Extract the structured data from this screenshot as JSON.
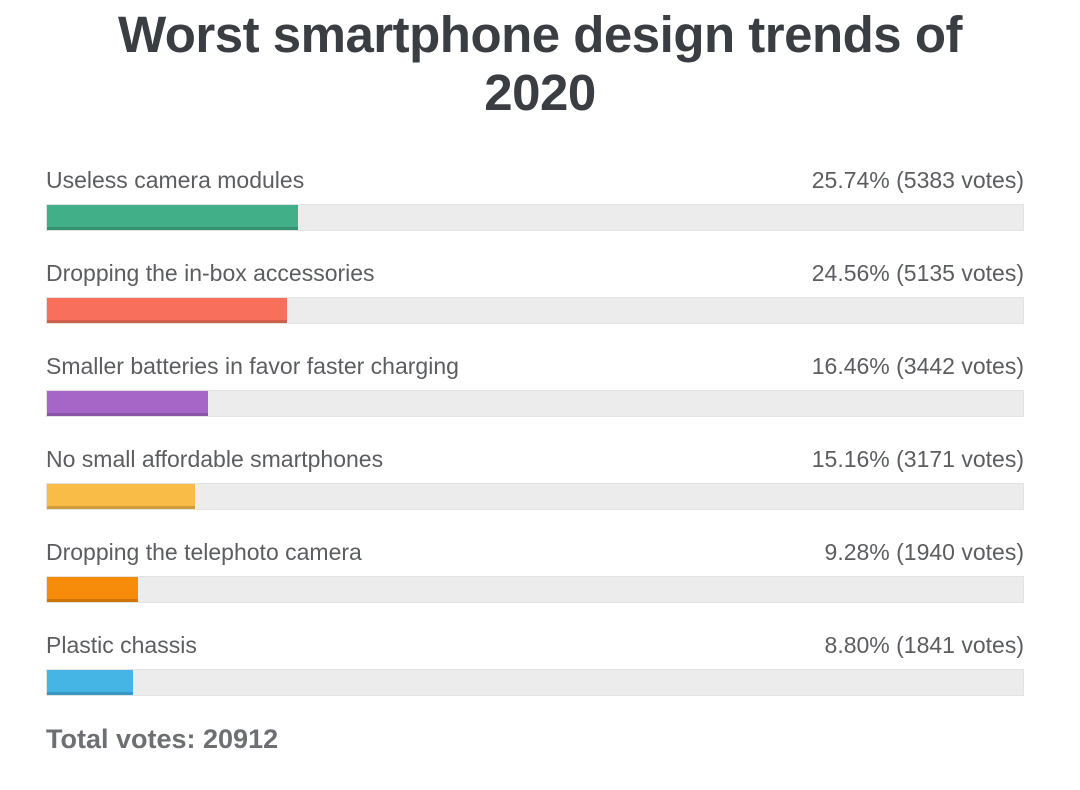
{
  "title": {
    "line1": "Worst smartphone design trends of",
    "line2": "2020"
  },
  "chart_data": {
    "type": "bar",
    "orientation": "horizontal",
    "title": "Worst smartphone design trends of 2020",
    "xlabel": "",
    "ylabel": "",
    "xlim": [
      0,
      100
    ],
    "grid": false,
    "legend": "none",
    "categories": [
      "Useless camera modules",
      "Dropping the in-box accessories",
      "Smaller batteries in favor faster charging",
      "No small affordable smartphones",
      "Dropping the telephoto camera",
      "Plastic chassis"
    ],
    "values": [
      25.74,
      24.56,
      16.46,
      15.16,
      9.28,
      8.8
    ],
    "votes": [
      5383,
      5135,
      3442,
      3171,
      1940,
      1841
    ],
    "rows": [
      {
        "label": "Useless camera modules",
        "percent": 25.74,
        "votes": 5383,
        "value_text": "25.74% (5383 votes)",
        "color": "#41b088"
      },
      {
        "label": "Dropping the in-box accessories",
        "percent": 24.56,
        "votes": 5135,
        "value_text": "24.56% (5135 votes)",
        "color": "#f8705c"
      },
      {
        "label": "Smaller batteries in favor faster charging",
        "percent": 16.46,
        "votes": 3442,
        "value_text": "16.46% (3442 votes)",
        "color": "#a566c8"
      },
      {
        "label": "No small affordable smartphones",
        "percent": 15.16,
        "votes": 3171,
        "value_text": "15.16% (3171 votes)",
        "color": "#f9bc47"
      },
      {
        "label": "Dropping the telephoto camera",
        "percent": 9.28,
        "votes": 1940,
        "value_text": "9.28% (1940 votes)",
        "color": "#f78c0a"
      },
      {
        "label": "Plastic chassis",
        "percent": 8.8,
        "votes": 1841,
        "value_text": "8.80% (1841 votes)",
        "color": "#44b5e4"
      }
    ],
    "total_votes": 20912,
    "colors": {
      "track": "#ececec",
      "track_border": "#e3e3e3",
      "label_text": "#5b5d60",
      "title_text": "#3a3d42",
      "total_text": "#6d6f72"
    }
  },
  "footer": {
    "total_label": "Total votes: 20912"
  }
}
